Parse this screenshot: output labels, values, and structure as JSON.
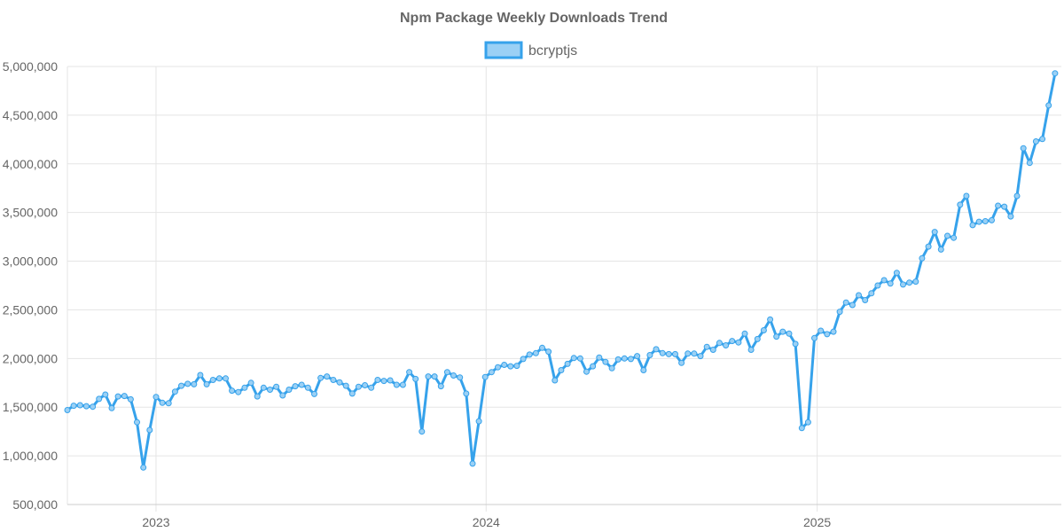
{
  "chart_data": {
    "type": "line",
    "title": "Npm Package Weekly Downloads Trend",
    "xlabel": "",
    "ylabel": "",
    "ylim": [
      500000,
      5000000
    ],
    "y_ticks": [
      "500,000",
      "1,000,000",
      "1,500,000",
      "2,000,000",
      "2,500,000",
      "3,000,000",
      "3,500,000",
      "4,000,000",
      "4,500,000",
      "5,000,000"
    ],
    "y_tick_values": [
      500000,
      1000000,
      1500000,
      2000000,
      2500000,
      3000000,
      3500000,
      4000000,
      4500000,
      5000000
    ],
    "x_ticks": [
      "2023",
      "2024",
      "2025"
    ],
    "x_range": [
      "2022-09-25",
      "2025-09-28"
    ],
    "grid": true,
    "legend_position": "top",
    "colors": {
      "line": "#36a2eb",
      "fill": "#9ad0f5",
      "grid": "#e5e5e5",
      "text": "#666666"
    },
    "series": [
      {
        "name": "bcryptjs",
        "x_start": "2022-09-25",
        "x_step_days": 7,
        "values": [
          1470000,
          1515000,
          1520000,
          1510000,
          1505000,
          1585000,
          1630000,
          1490000,
          1610000,
          1615000,
          1580000,
          1345000,
          880000,
          1265000,
          1605000,
          1545000,
          1540000,
          1660000,
          1720000,
          1740000,
          1735000,
          1830000,
          1735000,
          1780000,
          1795000,
          1795000,
          1670000,
          1655000,
          1700000,
          1750000,
          1610000,
          1700000,
          1680000,
          1710000,
          1620000,
          1680000,
          1715000,
          1730000,
          1700000,
          1635000,
          1800000,
          1815000,
          1780000,
          1755000,
          1720000,
          1640000,
          1710000,
          1725000,
          1700000,
          1780000,
          1770000,
          1775000,
          1730000,
          1730000,
          1860000,
          1790000,
          1250000,
          1815000,
          1815000,
          1715000,
          1860000,
          1825000,
          1805000,
          1640000,
          920000,
          1355000,
          1810000,
          1860000,
          1910000,
          1935000,
          1920000,
          1925000,
          1995000,
          2040000,
          2055000,
          2110000,
          2070000,
          1775000,
          1880000,
          1945000,
          2005000,
          2000000,
          1865000,
          1920000,
          2010000,
          1965000,
          1900000,
          1990000,
          2000000,
          1995000,
          2025000,
          1880000,
          2035000,
          2095000,
          2055000,
          2045000,
          2045000,
          1955000,
          2050000,
          2050000,
          2025000,
          2120000,
          2090000,
          2160000,
          2135000,
          2180000,
          2165000,
          2255000,
          2090000,
          2200000,
          2290000,
          2400000,
          2225000,
          2275000,
          2255000,
          2150000,
          1285000,
          1345000,
          2210000,
          2285000,
          2250000,
          2275000,
          2480000,
          2575000,
          2550000,
          2650000,
          2600000,
          2670000,
          2750000,
          2805000,
          2770000,
          2880000,
          2760000,
          2780000,
          2790000,
          3030000,
          3150000,
          3300000,
          3120000,
          3260000,
          3240000,
          3580000,
          3670000,
          3370000,
          3405000,
          3410000,
          3420000,
          3570000,
          3560000,
          3460000,
          3670000,
          4160000,
          4010000,
          4230000,
          4255000,
          4600000,
          4930000
        ]
      }
    ]
  }
}
